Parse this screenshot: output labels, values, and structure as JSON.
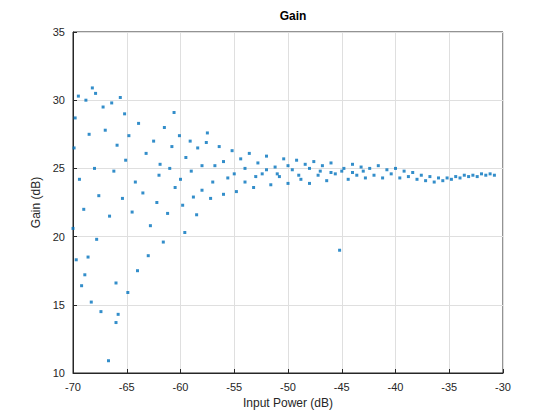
{
  "chart_data": {
    "type": "scatter",
    "title": "Gain",
    "x_label": "Input Power (dB)",
    "y_label": "Gain (dB)",
    "x": [
      -70,
      -69.7,
      -69.2,
      -68.6,
      -68.3,
      -67.4,
      -66.7,
      -66,
      -65.8,
      -66,
      -69.8,
      -69.5,
      -68.8,
      -68.2,
      -67.9,
      -67.2,
      -66.4,
      -65.6,
      -65.2,
      -69.9,
      -69.4,
      -69,
      -68.5,
      -68,
      -67.6,
      -67,
      -66.6,
      -66.2,
      -65.9,
      -65.4,
      -65.1,
      -64.8,
      -64.5,
      -64.2,
      -63.9,
      -63.5,
      -63.2,
      -62.8,
      -62.5,
      -62.2,
      -61.9,
      -61.5,
      -61.2,
      -60.8,
      -60.5,
      -60.1,
      -59.8,
      -59.5,
      -59.1,
      -58.8,
      -58.4,
      -58,
      -57.6,
      -57.2,
      -56.8,
      -56.4,
      -56,
      -55.6,
      -55.2,
      -54.8,
      -54.4,
      -54,
      -53.6,
      -53.2,
      -52.8,
      -52.4,
      -52,
      -51.6,
      -51.2,
      -50.8,
      -50.4,
      -50,
      -49.6,
      -49.2,
      -48.8,
      -48.4,
      -48,
      -47.6,
      -47.2,
      -46.8,
      -46.4,
      -46,
      -45.6,
      -45.2,
      -44.8,
      -44.4,
      -44,
      -43.6,
      -43.2,
      -42.8,
      -42.4,
      -42,
      -41.6,
      -41.2,
      -40.8,
      -40.4,
      -40,
      -39.6,
      -39.2,
      -38.8,
      -38.4,
      -38,
      -37.6,
      -37.2,
      -36.8,
      -36.4,
      -36,
      -35.6,
      -35.2,
      -34.8,
      -34.4,
      -34,
      -33.6,
      -33.2,
      -32.8,
      -32.4,
      -32,
      -31.6,
      -31.2,
      -30.8,
      -62,
      -61,
      -60,
      -59,
      -58,
      -57,
      -56,
      -55,
      -54,
      -53,
      -52,
      -51,
      -50,
      -49,
      -48,
      -47,
      -46,
      -45,
      -44,
      -43,
      -57.5,
      -58.5,
      -59.6,
      -60.6,
      -61.6,
      -63,
      -64,
      -64.9,
      -67.8,
      -68.9
    ],
    "values": [
      20.6,
      18.3,
      16.4,
      18.5,
      15.2,
      14.5,
      10.9,
      13.7,
      14.3,
      16.6,
      28.7,
      30.3,
      30,
      30.9,
      30.5,
      29.5,
      29.8,
      30.2,
      29,
      26.5,
      24.2,
      22,
      27.5,
      25,
      23,
      27.8,
      21.5,
      24.8,
      26.7,
      22.8,
      25.6,
      27.4,
      21.8,
      24,
      28.3,
      23.2,
      26.1,
      20.8,
      27,
      22.5,
      25.3,
      28,
      21.7,
      26.6,
      23.6,
      27.4,
      22.3,
      25.8,
      27,
      22.9,
      26.5,
      23.4,
      26.9,
      22.8,
      25.2,
      26.6,
      23.1,
      24.3,
      26.3,
      23.3,
      25.7,
      24,
      26.1,
      23.6,
      25.4,
      24.6,
      25.9,
      23.8,
      25.1,
      24.4,
      25.7,
      23.9,
      24.9,
      25.6,
      24.2,
      25.3,
      23.9,
      25.5,
      24.5,
      25.2,
      24.1,
      25.4,
      24.6,
      19,
      25,
      24.2,
      25.3,
      24.5,
      25.1,
      24.3,
      25,
      24.5,
      25.2,
      24.3,
      24.9,
      24.6,
      25,
      24.3,
      24.8,
      24.4,
      24.7,
      24.2,
      24.5,
      24.1,
      24.4,
      24,
      24.3,
      24.1,
      24.3,
      24.2,
      24.4,
      24.3,
      24.5,
      24.4,
      24.5,
      24.4,
      24.6,
      24.5,
      24.6,
      24.5,
      24.5,
      25,
      24.2,
      24.8,
      25.2,
      24,
      25.5,
      24.6,
      25,
      24.4,
      24.9,
      24.6,
      25.2,
      24.5,
      25,
      24.8,
      24.7,
      24.8,
      24.7,
      24.8,
      27.6,
      21.6,
      20.3,
      29.1,
      19.6,
      18.6,
      17.5,
      15.9,
      19.8,
      17.2
    ],
    "color": "#0072bd",
    "marker": "square",
    "xlim": [
      -70,
      -30
    ],
    "xticks": [
      -70,
      -65,
      -60,
      -55,
      -50,
      -45,
      -40,
      -35,
      -30
    ],
    "ylim": [
      10,
      35
    ],
    "yticks": [
      10,
      15,
      20,
      25,
      30,
      35
    ],
    "grid": true
  }
}
